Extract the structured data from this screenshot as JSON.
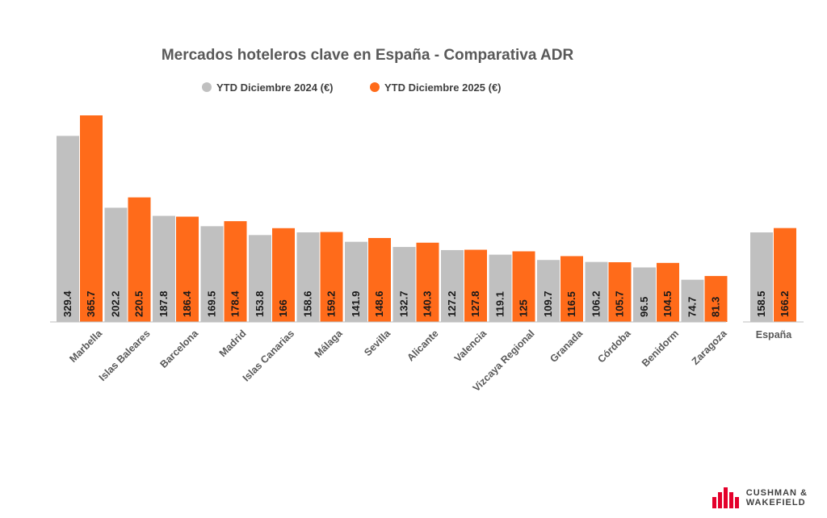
{
  "chart_data": {
    "type": "bar",
    "title": "Mercados hoteleros clave en España - Comparativa ADR",
    "categories": [
      "Marbella",
      "Islas Baleares",
      "Barcelona",
      "Madrid",
      "Islas Canarias",
      "Málaga",
      "Sevilla",
      "Alicante",
      "Valencia",
      "Vizcaya Regional",
      "Granada",
      "Córdoba",
      "Benidorm",
      "Zaragoza"
    ],
    "series": [
      {
        "name": "YTD Diciembre 2024 (€)",
        "color": "#c0c0c0",
        "values": [
          329.4,
          202.2,
          187.8,
          169.5,
          153.8,
          158.6,
          141.9,
          132.7,
          127.2,
          119.1,
          109.7,
          106.2,
          96.5,
          74.7
        ]
      },
      {
        "name": "YTD Diciembre 2025 (€)",
        "color": "#ff6b1a",
        "values": [
          365.7,
          220.5,
          186.4,
          178.4,
          166,
          159.2,
          148.6,
          140.3,
          127.8,
          125,
          116.5,
          105.7,
          104.5,
          81.3
        ]
      }
    ],
    "total_panel": {
      "category": "España",
      "values": [
        158.5,
        166.2
      ]
    },
    "value_labels": "vertical, inside bar bottom",
    "legend": "top-center",
    "grid": false,
    "ylim": [
      0,
      365.7
    ],
    "xlabel": "",
    "ylabel": ""
  },
  "logo": {
    "line1": "CUSHMAN &",
    "line2": "WAKEFIELD",
    "color": "#e4002b"
  }
}
